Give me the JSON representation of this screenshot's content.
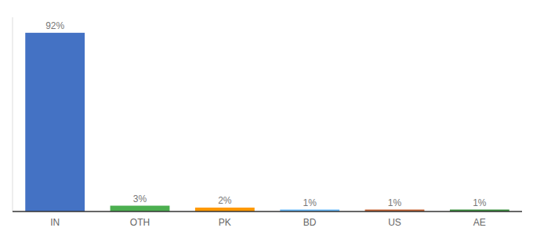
{
  "chart_data": {
    "type": "bar",
    "categories": [
      "IN",
      "OTH",
      "PK",
      "BD",
      "US",
      "AE"
    ],
    "values": [
      92,
      3,
      2,
      1,
      1,
      1
    ],
    "value_labels": [
      "92%",
      "3%",
      "2%",
      "1%",
      "1%",
      "1%"
    ],
    "colors": [
      "#4472c4",
      "#4caf50",
      "#ff9800",
      "#64b5f6",
      "#c06030",
      "#388e3c"
    ],
    "ylim": [
      0,
      100
    ],
    "data_labels": true,
    "tick_labels": "x",
    "grid": false
  }
}
